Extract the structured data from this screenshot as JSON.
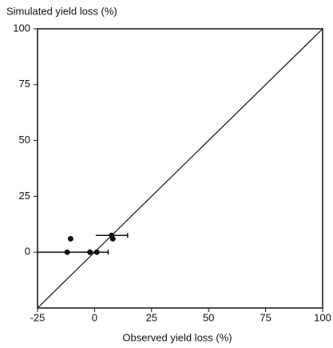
{
  "chart_data": {
    "type": "scatter",
    "ylabel": "Simulated yield loss (%)",
    "xlabel": "Observed yield loss (%)",
    "x": [
      -12,
      -10.5,
      -2,
      1,
      7.5,
      8
    ],
    "y": [
      0,
      6,
      0,
      0,
      7.5,
      6
    ],
    "xerr": [
      13,
      null,
      null,
      5,
      7,
      null
    ],
    "color": "#111111",
    "xlim": [
      -25,
      100
    ],
    "xticks": [
      -25,
      0,
      25,
      50,
      75,
      100
    ],
    "ylim": [
      -25,
      100
    ],
    "yticks": [
      0,
      25,
      50,
      75,
      100
    ]
  }
}
